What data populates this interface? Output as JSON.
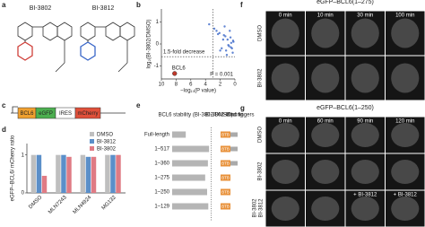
{
  "panel_labels": [
    "a",
    "b",
    "c",
    "d",
    "e",
    "f",
    "g"
  ],
  "a": {
    "compounds": [
      "BI-3802",
      "BI-3812"
    ]
  },
  "b": {
    "type": "scatter",
    "y_label": "log₂(BI-3802/DMSO)",
    "x_label": "−log₁₀(P value)",
    "fold_label": "1.5-fold decrease",
    "gene_label": "BCL6",
    "p_label": "P = 0.001",
    "xlim": [
      10,
      0
    ],
    "ylim": [
      -1.6,
      1.6
    ],
    "xticks": [
      10,
      8,
      6,
      4,
      2,
      0
    ],
    "yticks": [
      1,
      0,
      -1
    ],
    "hline": -0.58,
    "vline": 3,
    "color": "#3a67c8",
    "highlight_color": "#c0392b",
    "x": [
      0.2,
      0.4,
      0.6,
      0.8,
      1.0,
      1.2,
      1.5,
      1.8,
      2.1,
      2.5,
      0.3,
      0.7,
      1.1,
      1.4,
      0.5,
      0.9,
      1.6,
      2.0,
      2.8,
      3.5,
      0.25,
      0.55,
      1.3,
      2.3
    ],
    "y": [
      0.1,
      -0.2,
      0.3,
      -0.1,
      0.2,
      -0.3,
      0.4,
      -0.2,
      0.5,
      0.6,
      -0.4,
      0.6,
      -0.5,
      0.8,
      0.05,
      -0.05,
      0.2,
      -0.3,
      0.7,
      0.9,
      0.15,
      -0.15,
      0.35,
      0.45
    ],
    "highlight": {
      "x": 8.2,
      "y": -1.35
    }
  },
  "c": {
    "parts": [
      "BCL6",
      "eGFP",
      "IRES",
      "mCherry"
    ]
  },
  "d": {
    "type": "bar",
    "y_label": "eGFP–BCL6/ mCherry ratio",
    "categories": [
      "DMSO",
      "MLN7243",
      "MLN4924",
      "MG132"
    ],
    "ylim": [
      0,
      1.3
    ],
    "yticks": [
      0,
      1
    ],
    "series": [
      {
        "name": "DMSO",
        "color": "#bfbfbf",
        "values": [
          1.0,
          1.0,
          1.0,
          1.0
        ]
      },
      {
        "name": "BI-3812",
        "color": "#5b8fc9",
        "values": [
          1.0,
          1.0,
          0.95,
          1.0
        ]
      },
      {
        "name": "BI-3802",
        "color": "#e07b84",
        "values": [
          0.45,
          0.95,
          0.95,
          1.0
        ]
      }
    ]
  },
  "e": {
    "type": "bar",
    "title": "BCL6 stability (BI-3802/DMSO)",
    "binding_label": "BI-3802-binding",
    "zinc_label": "Zinc fingers",
    "categories": [
      "Full-length",
      "1–517",
      "1–360",
      "1–275",
      "1–250",
      "1–129"
    ],
    "values": [
      0.35,
      0.95,
      0.92,
      0.85,
      0.9,
      0.93
    ],
    "domains": [
      "BTB",
      "BTB",
      "BTB",
      "BTB",
      "BTB",
      "BTB"
    ],
    "xlim": [
      0,
      1.2
    ],
    "ref_line": 1,
    "color": "#b5b5b5"
  },
  "f": {
    "title": "eGFP–BCL6(1–275)",
    "times": [
      "0 min",
      "10 min",
      "30 min",
      "100 min"
    ],
    "rows": [
      "DMSO",
      "BI-3802"
    ]
  },
  "g": {
    "title": "eGFP–BCL6(1–250)",
    "times": [
      "0 min",
      "60 min",
      "90 min",
      "120 min"
    ],
    "rows": [
      "DMSO",
      "BI-3802",
      "BI-3802",
      "BI-3812"
    ],
    "overlay": "+ BI-3812"
  }
}
